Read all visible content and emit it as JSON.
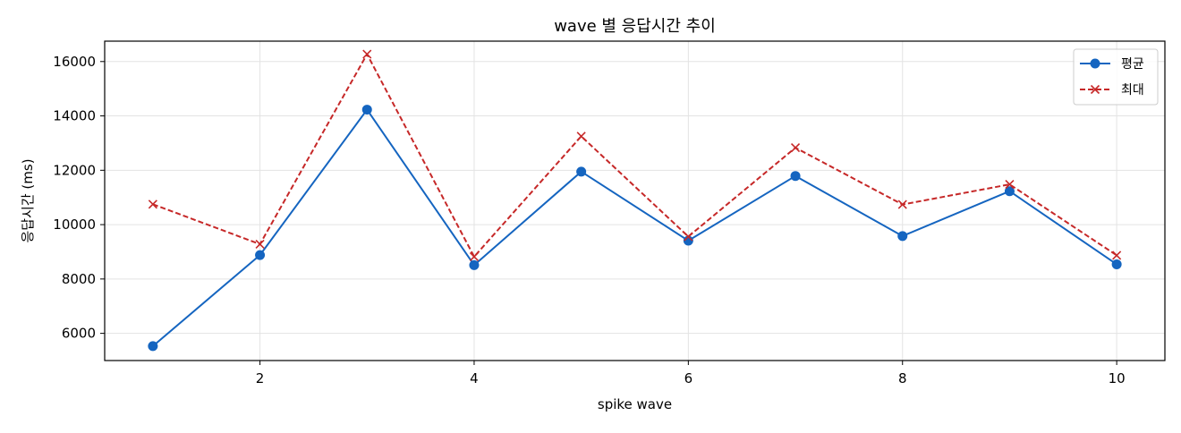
{
  "chart_data": {
    "type": "line",
    "title": "wave 별 응답시간 추이",
    "xlabel": "spike wave",
    "ylabel": "응답시간 (ms)",
    "x": [
      1,
      2,
      3,
      4,
      5,
      6,
      7,
      8,
      9,
      10
    ],
    "xlim": [
      0.55,
      10.45
    ],
    "ylim": [
      5000,
      16750
    ],
    "xticks": [
      2,
      4,
      6,
      8,
      10
    ],
    "yticks": [
      6000,
      8000,
      10000,
      12000,
      14000,
      16000
    ],
    "grid": true,
    "legend_position": "top-right",
    "series": [
      {
        "name": "평균",
        "values": [
          5530,
          8880,
          14230,
          8510,
          11950,
          9410,
          11790,
          9580,
          11230,
          8540
        ],
        "color": "#1565c0",
        "line_style": "solid",
        "marker": "circle"
      },
      {
        "name": "최대",
        "values": [
          10750,
          9280,
          16270,
          8820,
          13250,
          9560,
          12830,
          10740,
          11480,
          8870
        ],
        "color": "#c62828",
        "line_style": "dashed",
        "marker": "x"
      }
    ]
  }
}
